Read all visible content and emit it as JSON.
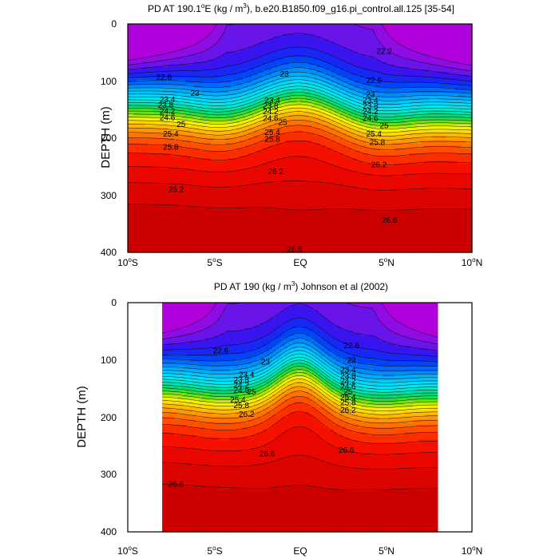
{
  "chart_data": [
    {
      "type": "contour",
      "title_prefix": "PD AT 190.1",
      "title_sup1": "o",
      "title_mid": "E (kg / m",
      "title_sup2": "3",
      "title_suffix": "), b.e20.B1850.f09_g16.pi_control.all.125 [35-54]",
      "ylabel": "DEPTH (m)",
      "xlim": [
        -10,
        10
      ],
      "ylim": [
        400,
        0
      ],
      "data_x_range": [
        -10,
        10
      ],
      "x_ticks": [
        {
          "value": -10,
          "num": "10",
          "deg": "o",
          "hemi": "S"
        },
        {
          "value": -5,
          "num": "5",
          "deg": "o",
          "hemi": "S"
        },
        {
          "value": 0,
          "num": "EQ",
          "deg": "",
          "hemi": ""
        },
        {
          "value": 5,
          "num": "5",
          "deg": "o",
          "hemi": "N"
        },
        {
          "value": 10,
          "num": "10",
          "deg": "o",
          "hemi": "N"
        }
      ],
      "y_ticks": [
        "0",
        "100",
        "200",
        "300",
        "400"
      ],
      "y_tick_values": [
        0,
        100,
        200,
        300,
        400
      ],
      "contour_interval": 0.2,
      "levels_range": [
        21.2,
        26.8
      ],
      "contour_labels": [
        {
          "text": "22.2",
          "x": 4.9,
          "y": 48
        },
        {
          "text": "22.6",
          "x": -7.9,
          "y": 94
        },
        {
          "text": "22.6",
          "x": 4.3,
          "y": 99
        },
        {
          "text": "23",
          "x": -6.1,
          "y": 122
        },
        {
          "text": "23",
          "x": -0.9,
          "y": 88
        },
        {
          "text": "23",
          "x": 4.1,
          "y": 124
        },
        {
          "text": "23.4",
          "x": -7.7,
          "y": 133
        },
        {
          "text": "23.4",
          "x": -1.6,
          "y": 134
        },
        {
          "text": "23.4",
          "x": 4.1,
          "y": 134
        },
        {
          "text": "23.8",
          "x": -7.8,
          "y": 143
        },
        {
          "text": "23.8",
          "x": -1.7,
          "y": 144
        },
        {
          "text": "23.8",
          "x": 4.1,
          "y": 144
        },
        {
          "text": "24.2",
          "x": -7.7,
          "y": 153
        },
        {
          "text": "24.2",
          "x": -1.7,
          "y": 154
        },
        {
          "text": "24.2",
          "x": 4.1,
          "y": 154
        },
        {
          "text": "24.6",
          "x": -7.7,
          "y": 164
        },
        {
          "text": "24.6",
          "x": -1.7,
          "y": 166
        },
        {
          "text": "24.6",
          "x": 4.1,
          "y": 166
        },
        {
          "text": "25",
          "x": -6.9,
          "y": 176
        },
        {
          "text": "25",
          "x": -1.0,
          "y": 173
        },
        {
          "text": "25",
          "x": 4.9,
          "y": 178
        },
        {
          "text": "25.4",
          "x": -7.5,
          "y": 193
        },
        {
          "text": "25.4",
          "x": -1.6,
          "y": 190
        },
        {
          "text": "25.4",
          "x": 4.3,
          "y": 193
        },
        {
          "text": "25.8",
          "x": -7.5,
          "y": 216
        },
        {
          "text": "25.8",
          "x": -1.6,
          "y": 202
        },
        {
          "text": "25.8",
          "x": 4.5,
          "y": 208
        },
        {
          "text": "26.2",
          "x": -1.4,
          "y": 259
        },
        {
          "text": "26.2",
          "x": 4.6,
          "y": 247
        },
        {
          "text": "26.2",
          "x": -7.2,
          "y": 290
        },
        {
          "text": "26.6",
          "x": 5.2,
          "y": 344
        },
        {
          "text": "26.6",
          "x": -0.3,
          "y": 395
        }
      ]
    },
    {
      "type": "contour",
      "title": "PD AT 190 (kg / m",
      "title_sup": "3",
      "title_suffix": ") Johnson et al (2002)",
      "ylabel": "DEPTH (m)",
      "xlim": [
        -10,
        10
      ],
      "ylim": [
        400,
        0
      ],
      "data_x_range": [
        -8,
        8
      ],
      "x_ticks": [
        {
          "value": -10,
          "num": "10",
          "deg": "o",
          "hemi": "S"
        },
        {
          "value": -5,
          "num": "5",
          "deg": "o",
          "hemi": "S"
        },
        {
          "value": 0,
          "num": "EQ",
          "deg": "",
          "hemi": ""
        },
        {
          "value": 5,
          "num": "5",
          "deg": "o",
          "hemi": "N"
        },
        {
          "value": 10,
          "num": "10",
          "deg": "o",
          "hemi": "N"
        }
      ],
      "y_ticks": [
        "0",
        "100",
        "200",
        "300",
        "400"
      ],
      "y_tick_values": [
        0,
        100,
        200,
        300,
        400
      ],
      "contour_interval": 0.2,
      "levels_range": [
        21.2,
        26.8
      ],
      "contour_labels": [
        {
          "text": "22.6",
          "x": -4.6,
          "y": 84
        },
        {
          "text": "22.6",
          "x": 3.0,
          "y": 75
        },
        {
          "text": "23",
          "x": -2.0,
          "y": 104
        },
        {
          "text": "23",
          "x": 3.0,
          "y": 101
        },
        {
          "text": "23.4",
          "x": -3.1,
          "y": 126
        },
        {
          "text": "23.4",
          "x": 2.8,
          "y": 118
        },
        {
          "text": "23.8",
          "x": -3.4,
          "y": 135
        },
        {
          "text": "23.8",
          "x": 2.8,
          "y": 128
        },
        {
          "text": "24.2",
          "x": -3.4,
          "y": 144
        },
        {
          "text": "24.2",
          "x": 2.8,
          "y": 137
        },
        {
          "text": "24.6",
          "x": -3.4,
          "y": 153
        },
        {
          "text": "24.6",
          "x": 2.8,
          "y": 147
        },
        {
          "text": "25",
          "x": -2.8,
          "y": 156
        },
        {
          "text": "25",
          "x": 2.8,
          "y": 156
        },
        {
          "text": "25.4",
          "x": -3.6,
          "y": 170
        },
        {
          "text": "25.4",
          "x": 2.8,
          "y": 166
        },
        {
          "text": "25.8",
          "x": -3.4,
          "y": 180
        },
        {
          "text": "25.8",
          "x": 2.8,
          "y": 175
        },
        {
          "text": "26.2",
          "x": -3.1,
          "y": 195
        },
        {
          "text": "26.2",
          "x": 2.8,
          "y": 188
        },
        {
          "text": "26.6",
          "x": -1.9,
          "y": 264
        },
        {
          "text": "26.6",
          "x": 2.7,
          "y": 258
        },
        {
          "text": "26.6",
          "x": -7.2,
          "y": 317
        }
      ]
    }
  ]
}
